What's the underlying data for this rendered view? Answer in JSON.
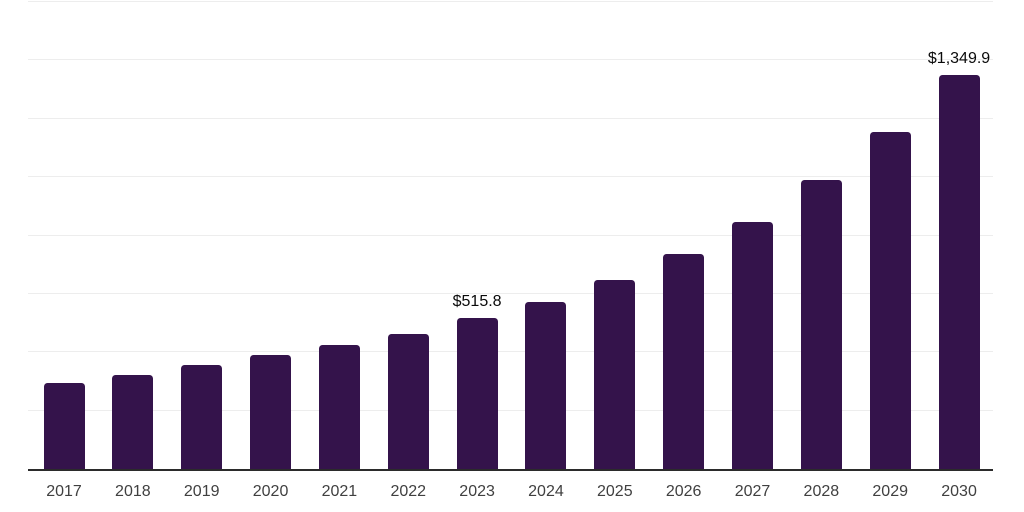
{
  "chart_data": {
    "type": "bar",
    "title": "",
    "xlabel": "",
    "ylabel": "",
    "categories": [
      "2017",
      "2018",
      "2019",
      "2020",
      "2021",
      "2022",
      "2023",
      "2024",
      "2025",
      "2026",
      "2027",
      "2028",
      "2029",
      "2030"
    ],
    "values": [
      293,
      321,
      356,
      392,
      424,
      461,
      515.8,
      572,
      646,
      737,
      848,
      990,
      1153,
      1349.9
    ],
    "labeled_points": [
      {
        "category": "2023",
        "label": "$515.8"
      },
      {
        "category": "2030",
        "label": "$1,349.9"
      }
    ],
    "ylim": [
      0,
      1600
    ],
    "gridline_interval": 200,
    "grid": true,
    "legend": false,
    "y_tick_labels_visible": false
  },
  "style": {
    "bar_color": "#34134B",
    "gridline_color": "#ededed",
    "axis_line_color": "#2b2b2b",
    "year_label_color": "#404040",
    "value_label_color": "#0a0a0a",
    "background_color": "#ffffff"
  }
}
